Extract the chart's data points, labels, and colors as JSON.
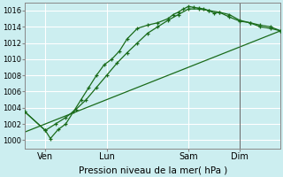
{
  "xlabel": "Pression niveau de la mer( hPa )",
  "background_color": "#cceef0",
  "grid_color": "#ffffff",
  "line_color": "#1a6b1a",
  "ylim": [
    999,
    1017
  ],
  "xlim": [
    0,
    100
  ],
  "x_ticks_pos": [
    8,
    32,
    64,
    84
  ],
  "x_tick_labels": [
    "Ven",
    "Lun",
    "Sam",
    "Dim"
  ],
  "y_ticks": [
    1000,
    1002,
    1004,
    1006,
    1008,
    1010,
    1012,
    1014,
    1016
  ],
  "vline_x": 84,
  "series1_x": [
    0,
    8,
    10,
    13,
    16,
    19,
    22,
    25,
    28,
    31,
    34,
    37,
    40,
    44,
    48,
    52,
    56,
    58,
    60,
    62,
    64,
    66,
    68,
    70,
    72,
    74,
    76,
    80,
    84,
    88,
    92,
    96,
    100
  ],
  "series1_y": [
    1003.5,
    1001.2,
    1000.2,
    1001.3,
    1002.0,
    1003.5,
    1005.0,
    1006.5,
    1008.0,
    1009.3,
    1010.0,
    1011.0,
    1012.5,
    1013.8,
    1014.2,
    1014.5,
    1015.0,
    1015.5,
    1015.8,
    1016.2,
    1016.5,
    1016.4,
    1016.3,
    1016.2,
    1016.0,
    1015.7,
    1015.8,
    1015.2,
    1014.7,
    1014.5,
    1014.2,
    1014.0,
    1013.5
  ],
  "series2_x": [
    0,
    8,
    12,
    16,
    20,
    24,
    28,
    32,
    36,
    40,
    44,
    48,
    52,
    56,
    60,
    64,
    68,
    72,
    76,
    80,
    84,
    88,
    92,
    96,
    100
  ],
  "series2_y": [
    1003.5,
    1001.2,
    1002.0,
    1002.8,
    1003.8,
    1005.0,
    1006.5,
    1008.0,
    1009.5,
    1010.8,
    1012.0,
    1013.2,
    1014.0,
    1014.8,
    1015.5,
    1016.2,
    1016.2,
    1016.0,
    1015.8,
    1015.5,
    1014.8,
    1014.5,
    1014.0,
    1013.8,
    1013.5
  ],
  "series3_x": [
    0,
    100
  ],
  "series3_y": [
    1001.0,
    1013.5
  ]
}
